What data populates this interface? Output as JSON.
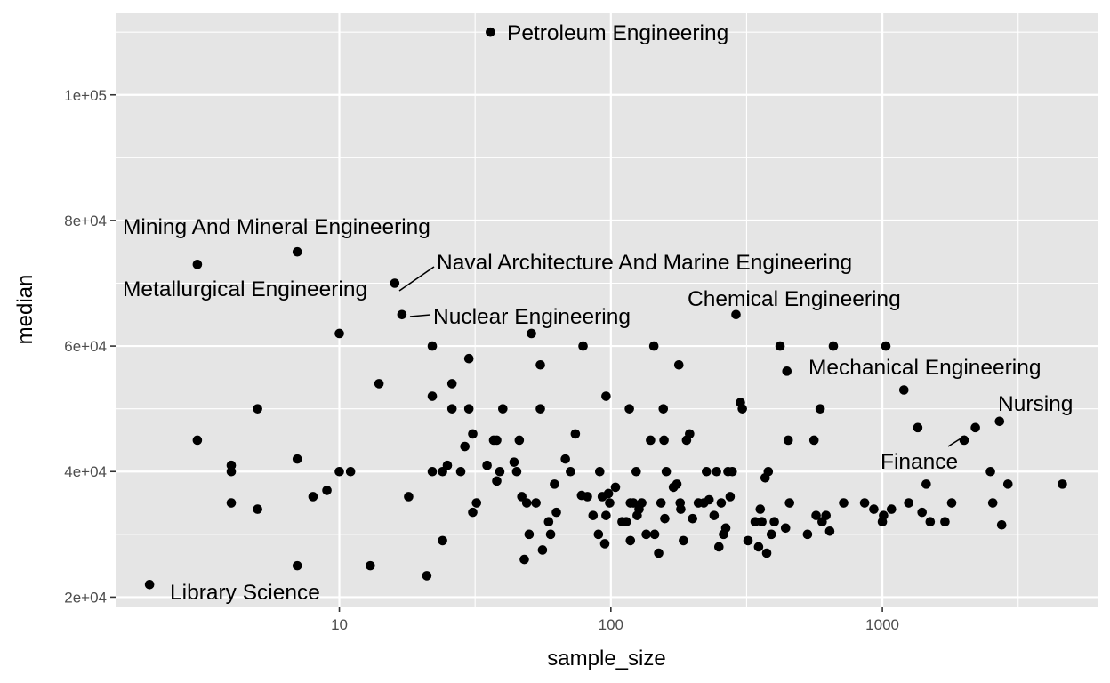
{
  "chart_data": {
    "type": "scatter",
    "x_scale": "log10",
    "xlabel": "sample_size",
    "ylabel": "median",
    "xlim": [
      1.5,
      6200
    ],
    "ylim": [
      18500,
      113000
    ],
    "x_ticks": [
      {
        "value": 10,
        "label": "10"
      },
      {
        "value": 100,
        "label": "100"
      },
      {
        "value": 1000,
        "label": "1000"
      }
    ],
    "y_ticks": [
      {
        "value": 20000,
        "label": "2e+04"
      },
      {
        "value": 40000,
        "label": "4e+04"
      },
      {
        "value": 60000,
        "label": "6e+04"
      },
      {
        "value": 80000,
        "label": "8e+04"
      },
      {
        "value": 100000,
        "label": "1e+05"
      }
    ],
    "grid": true,
    "colors": {
      "panel_bg": "#e5e5e5",
      "grid": "#ffffff",
      "point": "#000000",
      "tick_text": "#4d4d4d"
    },
    "points": [
      [
        36,
        110000
      ],
      [
        3,
        73000
      ],
      [
        7,
        75000
      ],
      [
        16,
        70000
      ],
      [
        17,
        65000
      ],
      [
        289,
        65000
      ],
      [
        2,
        22000
      ],
      [
        3,
        45000
      ],
      [
        4,
        41000
      ],
      [
        4,
        40000
      ],
      [
        4,
        35000
      ],
      [
        5,
        50000
      ],
      [
        5,
        34000
      ],
      [
        7,
        42000
      ],
      [
        7,
        25000
      ],
      [
        8,
        36000
      ],
      [
        9,
        37000
      ],
      [
        10,
        62000
      ],
      [
        10,
        40000
      ],
      [
        11,
        40000
      ],
      [
        13,
        25000
      ],
      [
        14,
        54000
      ],
      [
        18,
        36000
      ],
      [
        21,
        23400
      ],
      [
        22,
        60000
      ],
      [
        22,
        52000
      ],
      [
        22,
        40000
      ],
      [
        24,
        40000
      ],
      [
        24,
        29000
      ],
      [
        25,
        41000
      ],
      [
        26,
        54000
      ],
      [
        26,
        50000
      ],
      [
        28,
        40000
      ],
      [
        29,
        44000
      ],
      [
        30,
        58000
      ],
      [
        30,
        50000
      ],
      [
        31,
        46000
      ],
      [
        31,
        33500
      ],
      [
        32,
        35000
      ],
      [
        35,
        41000
      ],
      [
        37,
        45000
      ],
      [
        38,
        45000
      ],
      [
        38,
        38500
      ],
      [
        39,
        40000
      ],
      [
        40,
        50000
      ],
      [
        44,
        41500
      ],
      [
        45,
        40000
      ],
      [
        46,
        45000
      ],
      [
        47,
        36000
      ],
      [
        48,
        26000
      ],
      [
        49,
        35000
      ],
      [
        50,
        30000
      ],
      [
        51,
        62000
      ],
      [
        53,
        35000
      ],
      [
        55,
        57000
      ],
      [
        55,
        50000
      ],
      [
        56,
        27500
      ],
      [
        59,
        32000
      ],
      [
        60,
        30000
      ],
      [
        62,
        38000
      ],
      [
        63,
        33500
      ],
      [
        68,
        42000
      ],
      [
        71,
        40000
      ],
      [
        74,
        46000
      ],
      [
        78,
        36200
      ],
      [
        79,
        60000
      ],
      [
        82,
        36000
      ],
      [
        86,
        33000
      ],
      [
        90,
        30000
      ],
      [
        91,
        40000
      ],
      [
        93,
        36000
      ],
      [
        95,
        28500
      ],
      [
        96,
        52000
      ],
      [
        96,
        33000
      ],
      [
        98,
        36500
      ],
      [
        99,
        35000
      ],
      [
        104,
        37500
      ],
      [
        110,
        32000
      ],
      [
        114,
        32000
      ],
      [
        117,
        50000
      ],
      [
        118,
        35000
      ],
      [
        118,
        29000
      ],
      [
        121,
        35000
      ],
      [
        124,
        40000
      ],
      [
        125,
        33000
      ],
      [
        127,
        34000
      ],
      [
        130,
        35000
      ],
      [
        135,
        30000
      ],
      [
        140,
        45000
      ],
      [
        144,
        60000
      ],
      [
        145,
        30000
      ],
      [
        150,
        27000
      ],
      [
        153,
        35000
      ],
      [
        156,
        50000
      ],
      [
        157,
        45000
      ],
      [
        158,
        32500
      ],
      [
        160,
        40000
      ],
      [
        170,
        37500
      ],
      [
        175,
        38000
      ],
      [
        178,
        57000
      ],
      [
        180,
        35000
      ],
      [
        181,
        34000
      ],
      [
        185,
        29000
      ],
      [
        190,
        45000
      ],
      [
        195,
        46000
      ],
      [
        200,
        32500
      ],
      [
        210,
        35000
      ],
      [
        220,
        35000
      ],
      [
        225,
        40000
      ],
      [
        230,
        35500
      ],
      [
        240,
        33000
      ],
      [
        245,
        40000
      ],
      [
        250,
        28000
      ],
      [
        255,
        35000
      ],
      [
        260,
        30000
      ],
      [
        265,
        31000
      ],
      [
        270,
        40000
      ],
      [
        275,
        36000
      ],
      [
        280,
        40000
      ],
      [
        300,
        51000
      ],
      [
        305,
        50000
      ],
      [
        320,
        29000
      ],
      [
        340,
        32000
      ],
      [
        350,
        28000
      ],
      [
        355,
        34000
      ],
      [
        360,
        32000
      ],
      [
        370,
        39000
      ],
      [
        375,
        27000
      ],
      [
        380,
        40000
      ],
      [
        390,
        30000
      ],
      [
        400,
        32000
      ],
      [
        420,
        60000
      ],
      [
        440,
        31000
      ],
      [
        445,
        56000
      ],
      [
        450,
        45000
      ],
      [
        455,
        35000
      ],
      [
        530,
        30000
      ],
      [
        560,
        45000
      ],
      [
        570,
        33000
      ],
      [
        590,
        50000
      ],
      [
        600,
        32000
      ],
      [
        620,
        33000
      ],
      [
        640,
        30500
      ],
      [
        660,
        60000
      ],
      [
        720,
        35000
      ],
      [
        860,
        35000
      ],
      [
        930,
        34000
      ],
      [
        1000,
        32000
      ],
      [
        1010,
        33000
      ],
      [
        1030,
        60000
      ],
      [
        1080,
        34000
      ],
      [
        1200,
        53000
      ],
      [
        1250,
        35000
      ],
      [
        1350,
        47000
      ],
      [
        1400,
        33500
      ],
      [
        1450,
        38000
      ],
      [
        1500,
        32000
      ],
      [
        1700,
        32000
      ],
      [
        1800,
        35000
      ],
      [
        2000,
        45000
      ],
      [
        2200,
        47000
      ],
      [
        2500,
        40000
      ],
      [
        2550,
        35000
      ],
      [
        2700,
        48000
      ],
      [
        2750,
        31500
      ],
      [
        2900,
        38000
      ],
      [
        4600,
        38000
      ]
    ],
    "labels": [
      {
        "text": "Petroleum Engineering"
      },
      {
        "text": "Mining And Mineral Engineering"
      },
      {
        "text": "Metallurgical Engineering"
      },
      {
        "text": "Naval Architecture And Marine Engineering"
      },
      {
        "text": "Nuclear Engineering"
      },
      {
        "text": "Chemical Engineering"
      },
      {
        "text": "Mechanical Engineering"
      },
      {
        "text": "Nursing"
      },
      {
        "text": "Finance"
      },
      {
        "text": "Library Science"
      }
    ]
  }
}
